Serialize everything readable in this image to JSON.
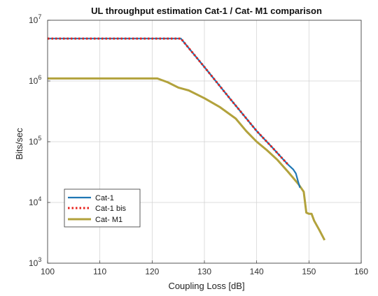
{
  "chart_data": {
    "type": "line",
    "title": "UL throughput estimation Cat-1 / Cat- M1 comparison",
    "xlabel": "Coupling Loss [dB]",
    "ylabel": "Bits/sec",
    "x_scale": "linear",
    "y_scale": "log",
    "xlim": [
      100,
      160
    ],
    "ylim": [
      1000,
      10000000
    ],
    "xticks": [
      100,
      110,
      120,
      130,
      140,
      150,
      160
    ],
    "yticks": [
      {
        "value": 1000,
        "base": "10",
        "exp": "3"
      },
      {
        "value": 10000,
        "base": "10",
        "exp": "4"
      },
      {
        "value": 100000,
        "base": "10",
        "exp": "5"
      },
      {
        "value": 1000000,
        "base": "10",
        "exp": "6"
      },
      {
        "value": 10000000,
        "base": "10",
        "exp": "7"
      }
    ],
    "grid": true,
    "legend_position": "bottom-left",
    "series": [
      {
        "name": "Cat-1",
        "color": "#1f77b4",
        "style": "solid",
        "x": [
          100,
          125.5,
          130,
          135,
          140,
          143,
          145,
          146,
          147,
          147.5,
          148,
          148.3
        ],
        "y": [
          5000000,
          5000000,
          1700000,
          500000,
          150000,
          80000,
          52000,
          42000,
          35000,
          30000,
          21000,
          17500
        ]
      },
      {
        "name": "Cat-1 bis",
        "color": "#e8221c",
        "style": "dotted",
        "x": [
          100,
          125.5,
          130,
          135,
          140,
          143,
          145,
          146
        ],
        "y": [
          5000000,
          5000000,
          1700000,
          500000,
          150000,
          80000,
          52000,
          42000
        ]
      },
      {
        "name": "Cat- M1",
        "color": "#b2a23c",
        "style": "solid",
        "x": [
          100,
          121,
          123,
          125,
          127,
          130,
          133,
          136,
          138,
          140,
          142,
          144,
          146,
          148,
          149,
          149.5,
          150,
          150.5,
          151,
          152,
          153
        ],
        "y": [
          1100000,
          1100000,
          950000,
          780000,
          700000,
          520000,
          370000,
          240000,
          150000,
          100000,
          72000,
          50000,
          32000,
          20000,
          15000,
          6800,
          6500,
          6500,
          5000,
          3500,
          2400
        ]
      }
    ]
  }
}
